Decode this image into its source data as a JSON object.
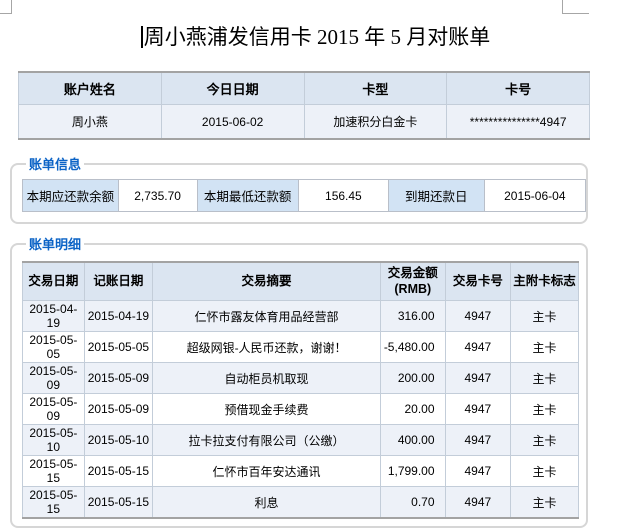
{
  "colors": {
    "accent_blue": "#0b63c6",
    "table_header_bg": "#dbe5f1",
    "row_stripe_bg": "#edf1f8",
    "label_cell_bg": "#d2e3f4",
    "cell_border": "#c3cdd9",
    "rule_gray": "#a3a3a3",
    "fieldset_border": "#d6d6d6"
  },
  "title": "周小燕浦发信用卡 2015 年 5 月对账单",
  "account_table": {
    "headers": [
      "账户姓名",
      "今日日期",
      "卡型",
      "卡号"
    ],
    "rows": [
      [
        "周小燕",
        "2015-06-02",
        "加速积分白金卡",
        "***************4947"
      ]
    ]
  },
  "bill_info": {
    "legend": "账单信息",
    "fields": [
      {
        "label": "本期应还款余额",
        "value": "2,735.70"
      },
      {
        "label": "本期最低还款额",
        "value": "156.45"
      },
      {
        "label": "到期还款日",
        "value": "2015-06-04"
      }
    ]
  },
  "bill_detail": {
    "legend": "账单明细",
    "headers": [
      "交易日期",
      "记账日期",
      "交易摘要",
      "交易金额\n(RMB)",
      "交易卡号",
      "主附卡标志"
    ],
    "rows": [
      [
        "2015-04-19",
        "2015-04-19",
        "仁怀市露友体育用品经营部",
        "316.00",
        "4947",
        "主卡"
      ],
      [
        "2015-05-05",
        "2015-05-05",
        "超级网银-人民币还款，谢谢！",
        "-5,480.00",
        "4947",
        "主卡"
      ],
      [
        "2015-05-09",
        "2015-05-09",
        "自动柜员机取现",
        "200.00",
        "4947",
        "主卡"
      ],
      [
        "2015-05-09",
        "2015-05-09",
        "预借现金手续费",
        "20.00",
        "4947",
        "主卡"
      ],
      [
        "2015-05-10",
        "2015-05-10",
        "拉卡拉支付有限公司（公缴）",
        "400.00",
        "4947",
        "主卡"
      ],
      [
        "2015-05-15",
        "2015-05-15",
        "仁怀市百年安达通讯",
        "1,799.00",
        "4947",
        "主卡"
      ],
      [
        "2015-05-15",
        "2015-05-15",
        "利息",
        "0.70",
        "4947",
        "主卡"
      ]
    ]
  }
}
